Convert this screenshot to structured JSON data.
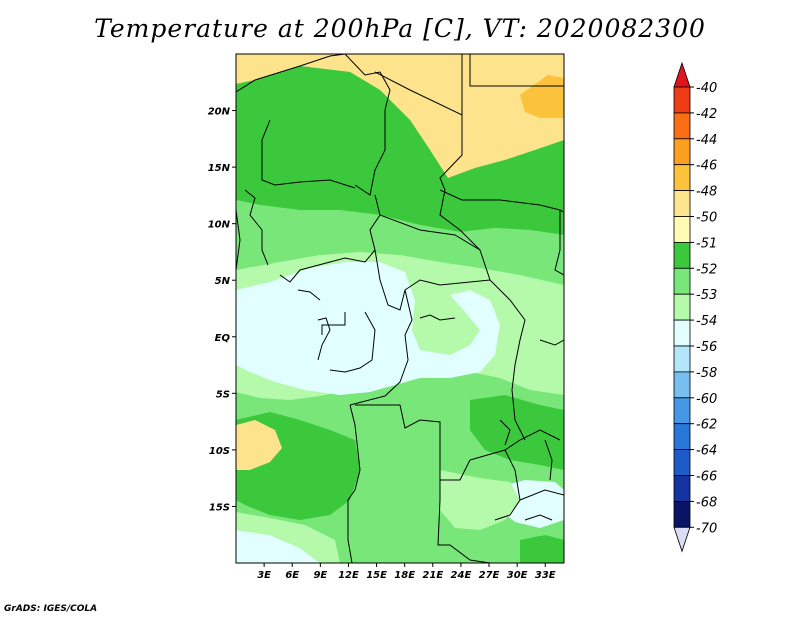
{
  "title": "Temperature at 200hPa [C], VT: 2020082300",
  "credit": "GrADS: IGES/COLA",
  "map": {
    "lat_labels": [
      "20N",
      "15N",
      "10N",
      "5N",
      "EQ",
      "5S",
      "10S",
      "15S"
    ],
    "lon_labels": [
      "3E",
      "6E",
      "9E",
      "12E",
      "15E",
      "18E",
      "21E",
      "24E",
      "27E",
      "30E",
      "33E"
    ],
    "lat_range": [
      -20,
      25
    ],
    "lon_range": [
      0,
      35
    ]
  },
  "legend": {
    "labels": [
      "-40",
      "-42",
      "-44",
      "-46",
      "-48",
      "-50",
      "-51",
      "-52",
      "-53",
      "-54",
      "-56",
      "-58",
      "-60",
      "-62",
      "-64",
      "-66",
      "-68",
      "-70"
    ],
    "colors": [
      "#e1141e",
      "#f03c14",
      "#fa6e14",
      "#faa01e",
      "#fbc23c",
      "#fde38c",
      "#fffab4",
      "#3cc83c",
      "#78e678",
      "#b4faaa",
      "#e1ffff",
      "#b4e6fa",
      "#78bef0",
      "#4696e6",
      "#2878dc",
      "#1e5ac8",
      "#1432a0",
      "#0a1464"
    ]
  },
  "chart_data": {
    "type": "heatmap",
    "title": "Temperature at 200hPa [C], VT: 2020082300",
    "x_ticks": [
      "3E",
      "6E",
      "9E",
      "12E",
      "15E",
      "18E",
      "21E",
      "24E",
      "27E",
      "30E",
      "33E"
    ],
    "y_ticks": [
      "20N",
      "15N",
      "10N",
      "5N",
      "EQ",
      "5S",
      "10S",
      "15S"
    ],
    "color_scale": [
      "-40",
      "-42",
      "-44",
      "-46",
      "-48",
      "-50",
      "-51",
      "-52",
      "-53",
      "-54",
      "-56",
      "-58",
      "-60",
      "-62",
      "-64",
      "-66",
      "-68",
      "-70"
    ]
  }
}
